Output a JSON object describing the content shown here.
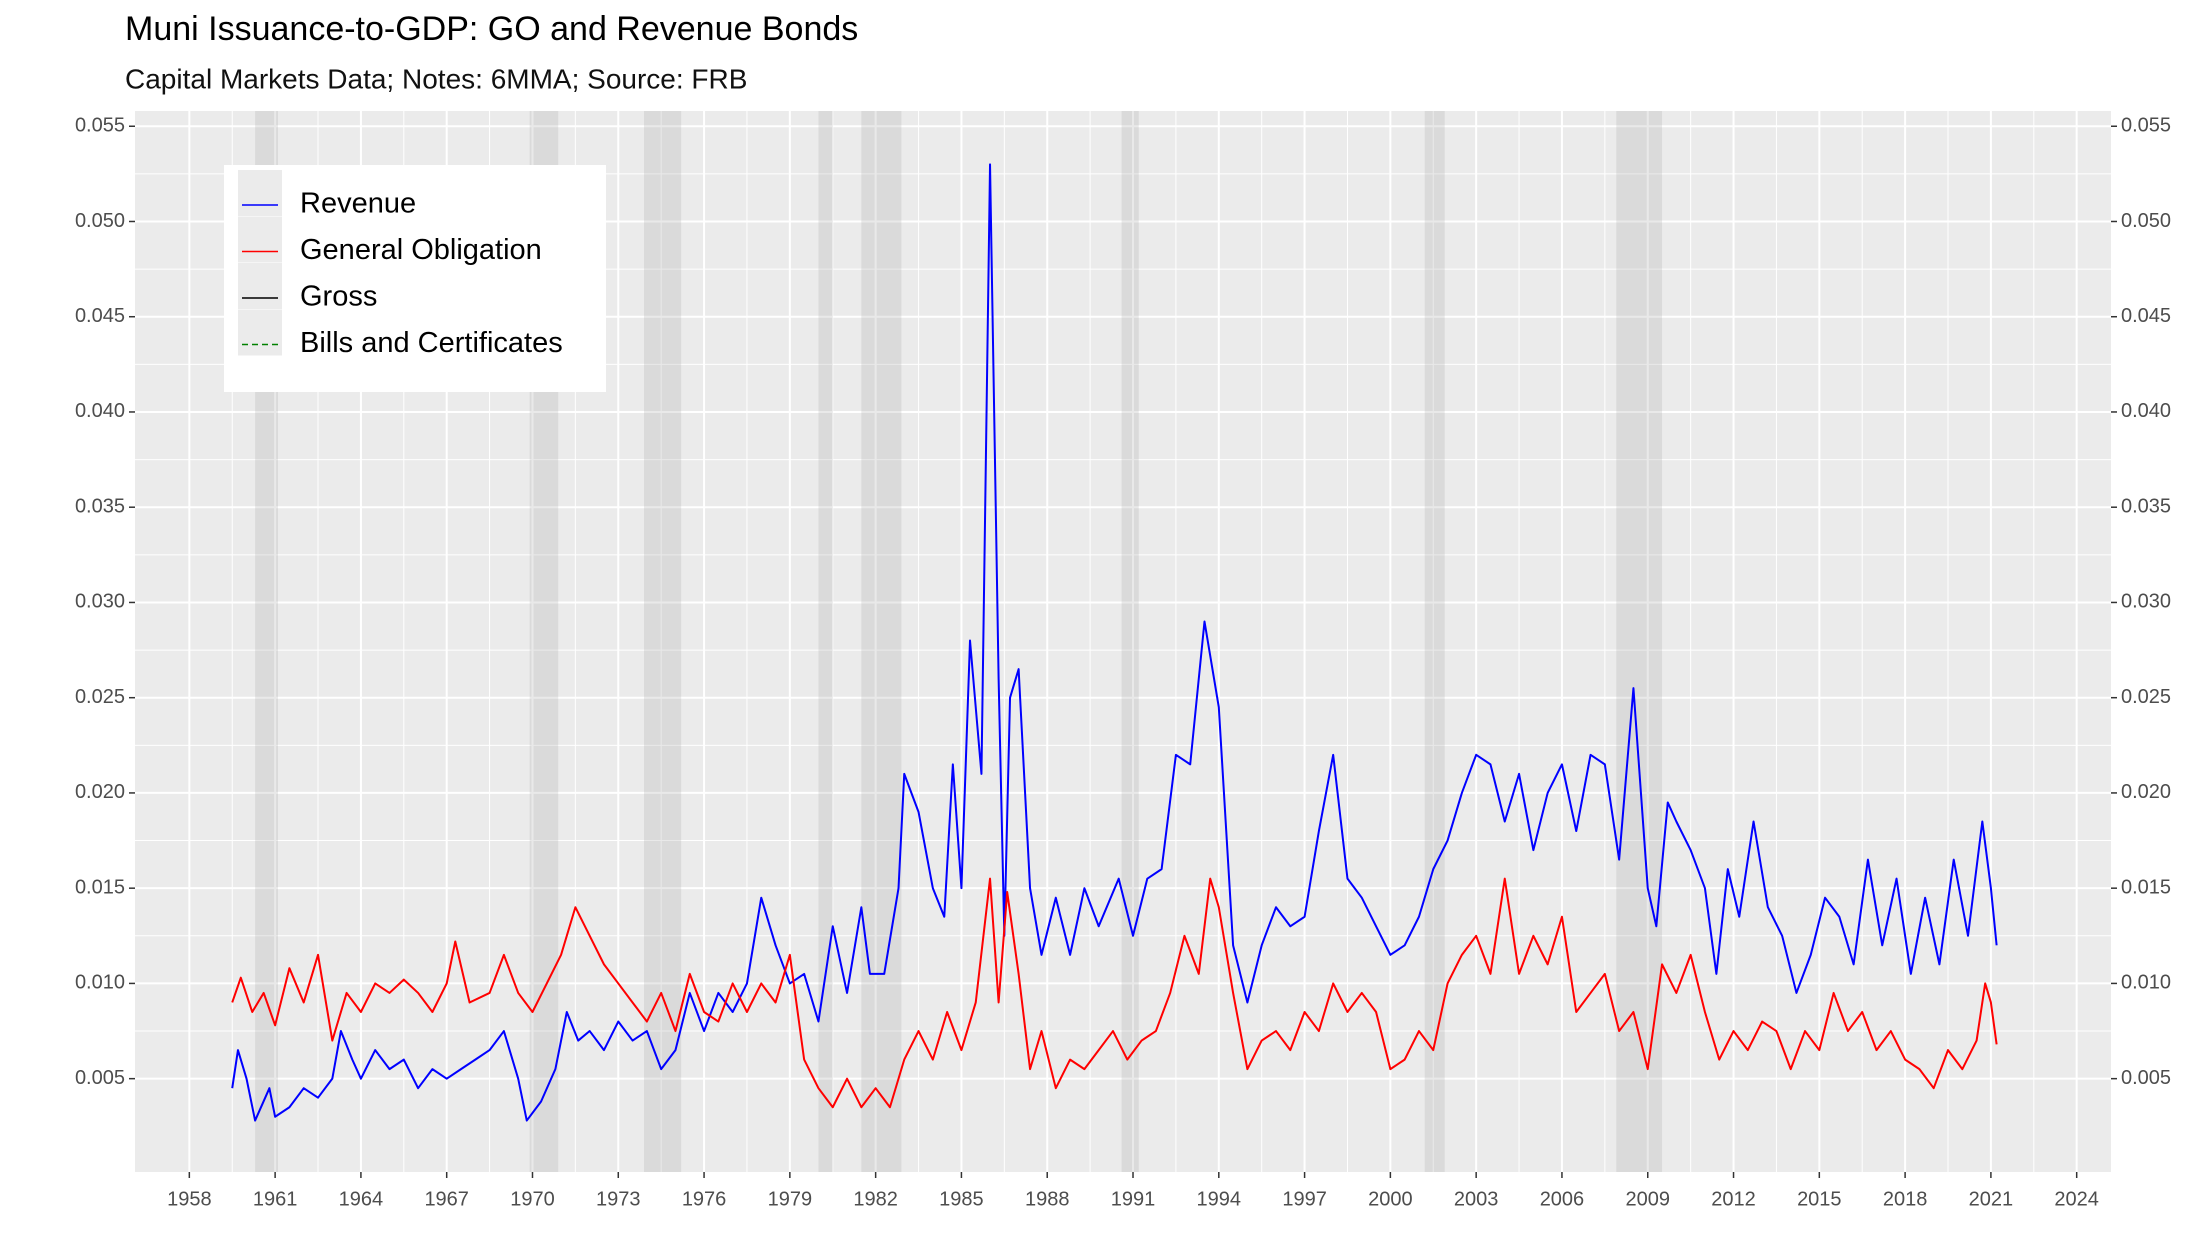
{
  "chart_data": {
    "type": "line",
    "title": "Muni Issuance-to-GDP: GO and Revenue Bonds",
    "subtitle": "Capital Markets Data; Notes: 6MMA; Source: FRB",
    "xlim": [
      1956.1,
      2025.2
    ],
    "xticks": [
      1958,
      1961,
      1964,
      1967,
      1970,
      1973,
      1976,
      1979,
      1982,
      1985,
      1988,
      1991,
      1994,
      1997,
      2000,
      2003,
      2006,
      2009,
      2012,
      2015,
      2018,
      2021,
      2024
    ],
    "ylim": [
      0.0001,
      0.0558
    ],
    "yticks": [
      0.005,
      {
        "value": 0.01,
        "label": "0.010"
      },
      0.015,
      {
        "value": 0.02,
        "label": "0.020"
      },
      0.025,
      {
        "value": 0.03,
        "label": "0.030"
      },
      0.035,
      {
        "value": 0.04,
        "label": "0.040"
      },
      0.045,
      {
        "value": 0.05,
        "label": "0.050"
      },
      0.055
    ],
    "grid": true,
    "legend_position": "top-left",
    "shaded_periods": [
      [
        1960.3,
        1961.1
      ],
      [
        1969.9,
        1970.9
      ],
      [
        1973.9,
        1975.2
      ],
      [
        1980.0,
        1980.5
      ],
      [
        1981.5,
        1982.9
      ],
      [
        1990.6,
        1991.2
      ],
      [
        2001.2,
        2001.9
      ],
      [
        2007.9,
        2009.5
      ]
    ],
    "series": [
      {
        "name": "Revenue",
        "color": "#0000ff",
        "x": [
          1959.5,
          1959.7,
          1960,
          1960.3,
          1960.8,
          1961,
          1961.5,
          1962,
          1962.5,
          1963,
          1963.3,
          1963.7,
          1964,
          1964.5,
          1965,
          1965.5,
          1966,
          1966.5,
          1967,
          1967.5,
          1968,
          1968.5,
          1969,
          1969.5,
          1969.8,
          1970.3,
          1970.8,
          1971.2,
          1971.6,
          1972,
          1972.5,
          1973,
          1973.5,
          1974,
          1974.5,
          1975,
          1975.5,
          1976,
          1976.5,
          1977,
          1977.5,
          1978,
          1978.5,
          1979,
          1979.5,
          1980,
          1980.5,
          1981,
          1981.5,
          1981.8,
          1982.3,
          1982.8,
          1983,
          1983.5,
          1984,
          1984.4,
          1984.7,
          1985,
          1985.3,
          1985.7,
          1986,
          1986.3,
          1986.5,
          1986.7,
          1987,
          1987.4,
          1987.8,
          1988.3,
          1988.8,
          1989.3,
          1989.8,
          1990.5,
          1991,
          1991.5,
          1992,
          1992.5,
          1993,
          1993.5,
          1994,
          1994.5,
          1995,
          1995.5,
          1996,
          1996.5,
          1997,
          1997.5,
          1998,
          1998.5,
          1999,
          1999.5,
          2000,
          2000.5,
          2001,
          2001.5,
          2002,
          2002.5,
          2003,
          2003.5,
          2004,
          2004.5,
          2005,
          2005.5,
          2006,
          2006.5,
          2007,
          2007.5,
          2008,
          2008.5,
          2009,
          2009.3,
          2009.7,
          2010,
          2010.5,
          2011,
          2011.4,
          2011.8,
          2012.2,
          2012.7,
          2013.2,
          2013.7,
          2014.2,
          2014.7,
          2015.2,
          2015.7,
          2016.2,
          2016.7,
          2017.2,
          2017.7,
          2018.2,
          2018.7,
          2019.2,
          2019.7,
          2020.2,
          2020.7,
          2021,
          2021.2
        ],
        "values": [
          0.0045,
          0.0065,
          0.005,
          0.0028,
          0.0045,
          0.003,
          0.0035,
          0.0045,
          0.004,
          0.005,
          0.0075,
          0.006,
          0.005,
          0.0065,
          0.0055,
          0.006,
          0.0045,
          0.0055,
          0.005,
          0.0055,
          0.006,
          0.0065,
          0.0075,
          0.005,
          0.0028,
          0.0038,
          0.0055,
          0.0085,
          0.007,
          0.0075,
          0.0065,
          0.008,
          0.007,
          0.0075,
          0.0055,
          0.0065,
          0.0095,
          0.0075,
          0.0095,
          0.0085,
          0.01,
          0.0145,
          0.012,
          0.01,
          0.0105,
          0.008,
          0.013,
          0.0095,
          0.014,
          0.0105,
          0.0105,
          0.015,
          0.021,
          0.019,
          0.015,
          0.0135,
          0.0215,
          0.015,
          0.028,
          0.021,
          0.053,
          0.026,
          0.0125,
          0.025,
          0.0265,
          0.015,
          0.0115,
          0.0145,
          0.0115,
          0.015,
          0.013,
          0.0155,
          0.0125,
          0.0155,
          0.016,
          0.022,
          0.0215,
          0.029,
          0.0245,
          0.012,
          0.009,
          0.012,
          0.014,
          0.013,
          0.0135,
          0.018,
          0.022,
          0.0155,
          0.0145,
          0.013,
          0.0115,
          0.012,
          0.0135,
          0.016,
          0.0175,
          0.02,
          0.022,
          0.0215,
          0.0185,
          0.021,
          0.017,
          0.02,
          0.0215,
          0.018,
          0.022,
          0.0215,
          0.0165,
          0.0255,
          0.015,
          0.013,
          0.0195,
          0.0185,
          0.017,
          0.015,
          0.0105,
          0.016,
          0.0135,
          0.0185,
          0.014,
          0.0125,
          0.0095,
          0.0115,
          0.0145,
          0.0135,
          0.011,
          0.0165,
          0.012,
          0.0155,
          0.0105,
          0.0145,
          0.011,
          0.0165,
          0.0125,
          0.0185,
          0.015,
          0.012
        ]
      },
      {
        "name": "General Obligation",
        "color": "#ff0000",
        "x": [
          1959.5,
          1959.8,
          1960.2,
          1960.6,
          1961,
          1961.5,
          1962,
          1962.5,
          1963,
          1963.5,
          1964,
          1964.5,
          1965,
          1965.5,
          1966,
          1966.5,
          1967,
          1967.3,
          1967.8,
          1968.5,
          1969,
          1969.5,
          1970,
          1970.5,
          1971,
          1971.5,
          1972,
          1972.5,
          1973,
          1973.5,
          1974,
          1974.5,
          1975,
          1975.5,
          1976,
          1976.5,
          1977,
          1977.5,
          1978,
          1978.5,
          1979,
          1979.5,
          1980,
          1980.5,
          1981,
          1981.5,
          1982,
          1982.5,
          1983,
          1983.5,
          1984,
          1984.5,
          1985,
          1985.5,
          1986,
          1986.3,
          1986.6,
          1987,
          1987.4,
          1987.8,
          1988.3,
          1988.8,
          1989.3,
          1989.8,
          1990.3,
          1990.8,
          1991.3,
          1991.8,
          1992.3,
          1992.8,
          1993.3,
          1993.7,
          1994,
          1994.5,
          1995,
          1995.5,
          1996,
          1996.5,
          1997,
          1997.5,
          1998,
          1998.5,
          1999,
          1999.5,
          2000,
          2000.5,
          2001,
          2001.5,
          2002,
          2002.5,
          2003,
          2003.5,
          2004,
          2004.5,
          2005,
          2005.5,
          2006,
          2006.5,
          2007,
          2007.5,
          2008,
          2008.5,
          2009,
          2009.5,
          2010,
          2010.5,
          2011,
          2011.5,
          2012,
          2012.5,
          2013,
          2013.5,
          2014,
          2014.5,
          2015,
          2015.5,
          2016,
          2016.5,
          2017,
          2017.5,
          2018,
          2018.5,
          2019,
          2019.5,
          2020,
          2020.5,
          2020.8,
          2021,
          2021.2
        ],
        "values": [
          0.009,
          0.0103,
          0.0085,
          0.0095,
          0.0078,
          0.0108,
          0.009,
          0.0115,
          0.007,
          0.0095,
          0.0085,
          0.01,
          0.0095,
          0.0102,
          0.0095,
          0.0085,
          0.01,
          0.0122,
          0.009,
          0.0095,
          0.0115,
          0.0095,
          0.0085,
          0.01,
          0.0115,
          0.014,
          0.0125,
          0.011,
          0.01,
          0.009,
          0.008,
          0.0095,
          0.0075,
          0.0105,
          0.0085,
          0.008,
          0.01,
          0.0085,
          0.01,
          0.009,
          0.0115,
          0.006,
          0.0045,
          0.0035,
          0.005,
          0.0035,
          0.0045,
          0.0035,
          0.006,
          0.0075,
          0.006,
          0.0085,
          0.0065,
          0.009,
          0.0155,
          0.009,
          0.0148,
          0.0105,
          0.0055,
          0.0075,
          0.0045,
          0.006,
          0.0055,
          0.0065,
          0.0075,
          0.006,
          0.007,
          0.0075,
          0.0095,
          0.0125,
          0.0105,
          0.0155,
          0.014,
          0.0095,
          0.0055,
          0.007,
          0.0075,
          0.0065,
          0.0085,
          0.0075,
          0.01,
          0.0085,
          0.0095,
          0.0085,
          0.0055,
          0.006,
          0.0075,
          0.0065,
          0.01,
          0.0115,
          0.0125,
          0.0105,
          0.0155,
          0.0105,
          0.0125,
          0.011,
          0.0135,
          0.0085,
          0.0095,
          0.0105,
          0.0075,
          0.0085,
          0.0055,
          0.011,
          0.0095,
          0.0115,
          0.0085,
          0.006,
          0.0075,
          0.0065,
          0.008,
          0.0075,
          0.0055,
          0.0075,
          0.0065,
          0.0095,
          0.0075,
          0.0085,
          0.0065,
          0.0075,
          0.006,
          0.0055,
          0.0045,
          0.0065,
          0.0055,
          0.007,
          0.01,
          0.009,
          0.0068
        ]
      },
      {
        "name": "Gross",
        "color": "#000000"
      },
      {
        "name": "Bills and Certificates",
        "color": "#008000",
        "dashed": true
      }
    ]
  }
}
